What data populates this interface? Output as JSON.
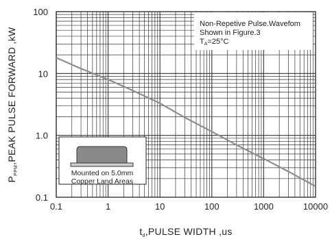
{
  "chart_data": {
    "type": "line",
    "x_scale": "log",
    "y_scale": "log",
    "xlim": [
      0.1,
      10000
    ],
    "ylim": [
      0.1,
      100
    ],
    "x_ticks": [
      "0.1",
      "1",
      "10",
      "100",
      "1000",
      "10000"
    ],
    "y_ticks": [
      "100",
      "10",
      "1.0",
      "0.1"
    ],
    "xlabel": {
      "prefix": "t",
      "subscript": "d",
      "rest": ",PULSE WIDTH ,us"
    },
    "ylabel": {
      "prefix": "P",
      "subscript": "PPM",
      "rest": ",PEAK PULSE  FORWARD ,kW"
    },
    "grid": true,
    "series": [
      {
        "color": "#8c8c8c",
        "x": [
          0.1,
          0.3,
          1,
          3,
          10,
          30,
          100,
          300,
          1000,
          3000,
          10000
        ],
        "y": [
          18,
          12,
          8,
          5.3,
          3.3,
          1.95,
          1.15,
          0.7,
          0.42,
          0.26,
          0.15
        ]
      }
    ],
    "annotation": {
      "lines": [
        "Non-Repetive  Pulse.Wavefom",
        "Shown in Figure.3"
      ],
      "temp_prefix": "T",
      "temp_subscript": "A",
      "temp_rest": "=25°C"
    },
    "inset": {
      "lines": [
        "Mounted on 5.0mm",
        "Copper Land Areas"
      ]
    }
  }
}
